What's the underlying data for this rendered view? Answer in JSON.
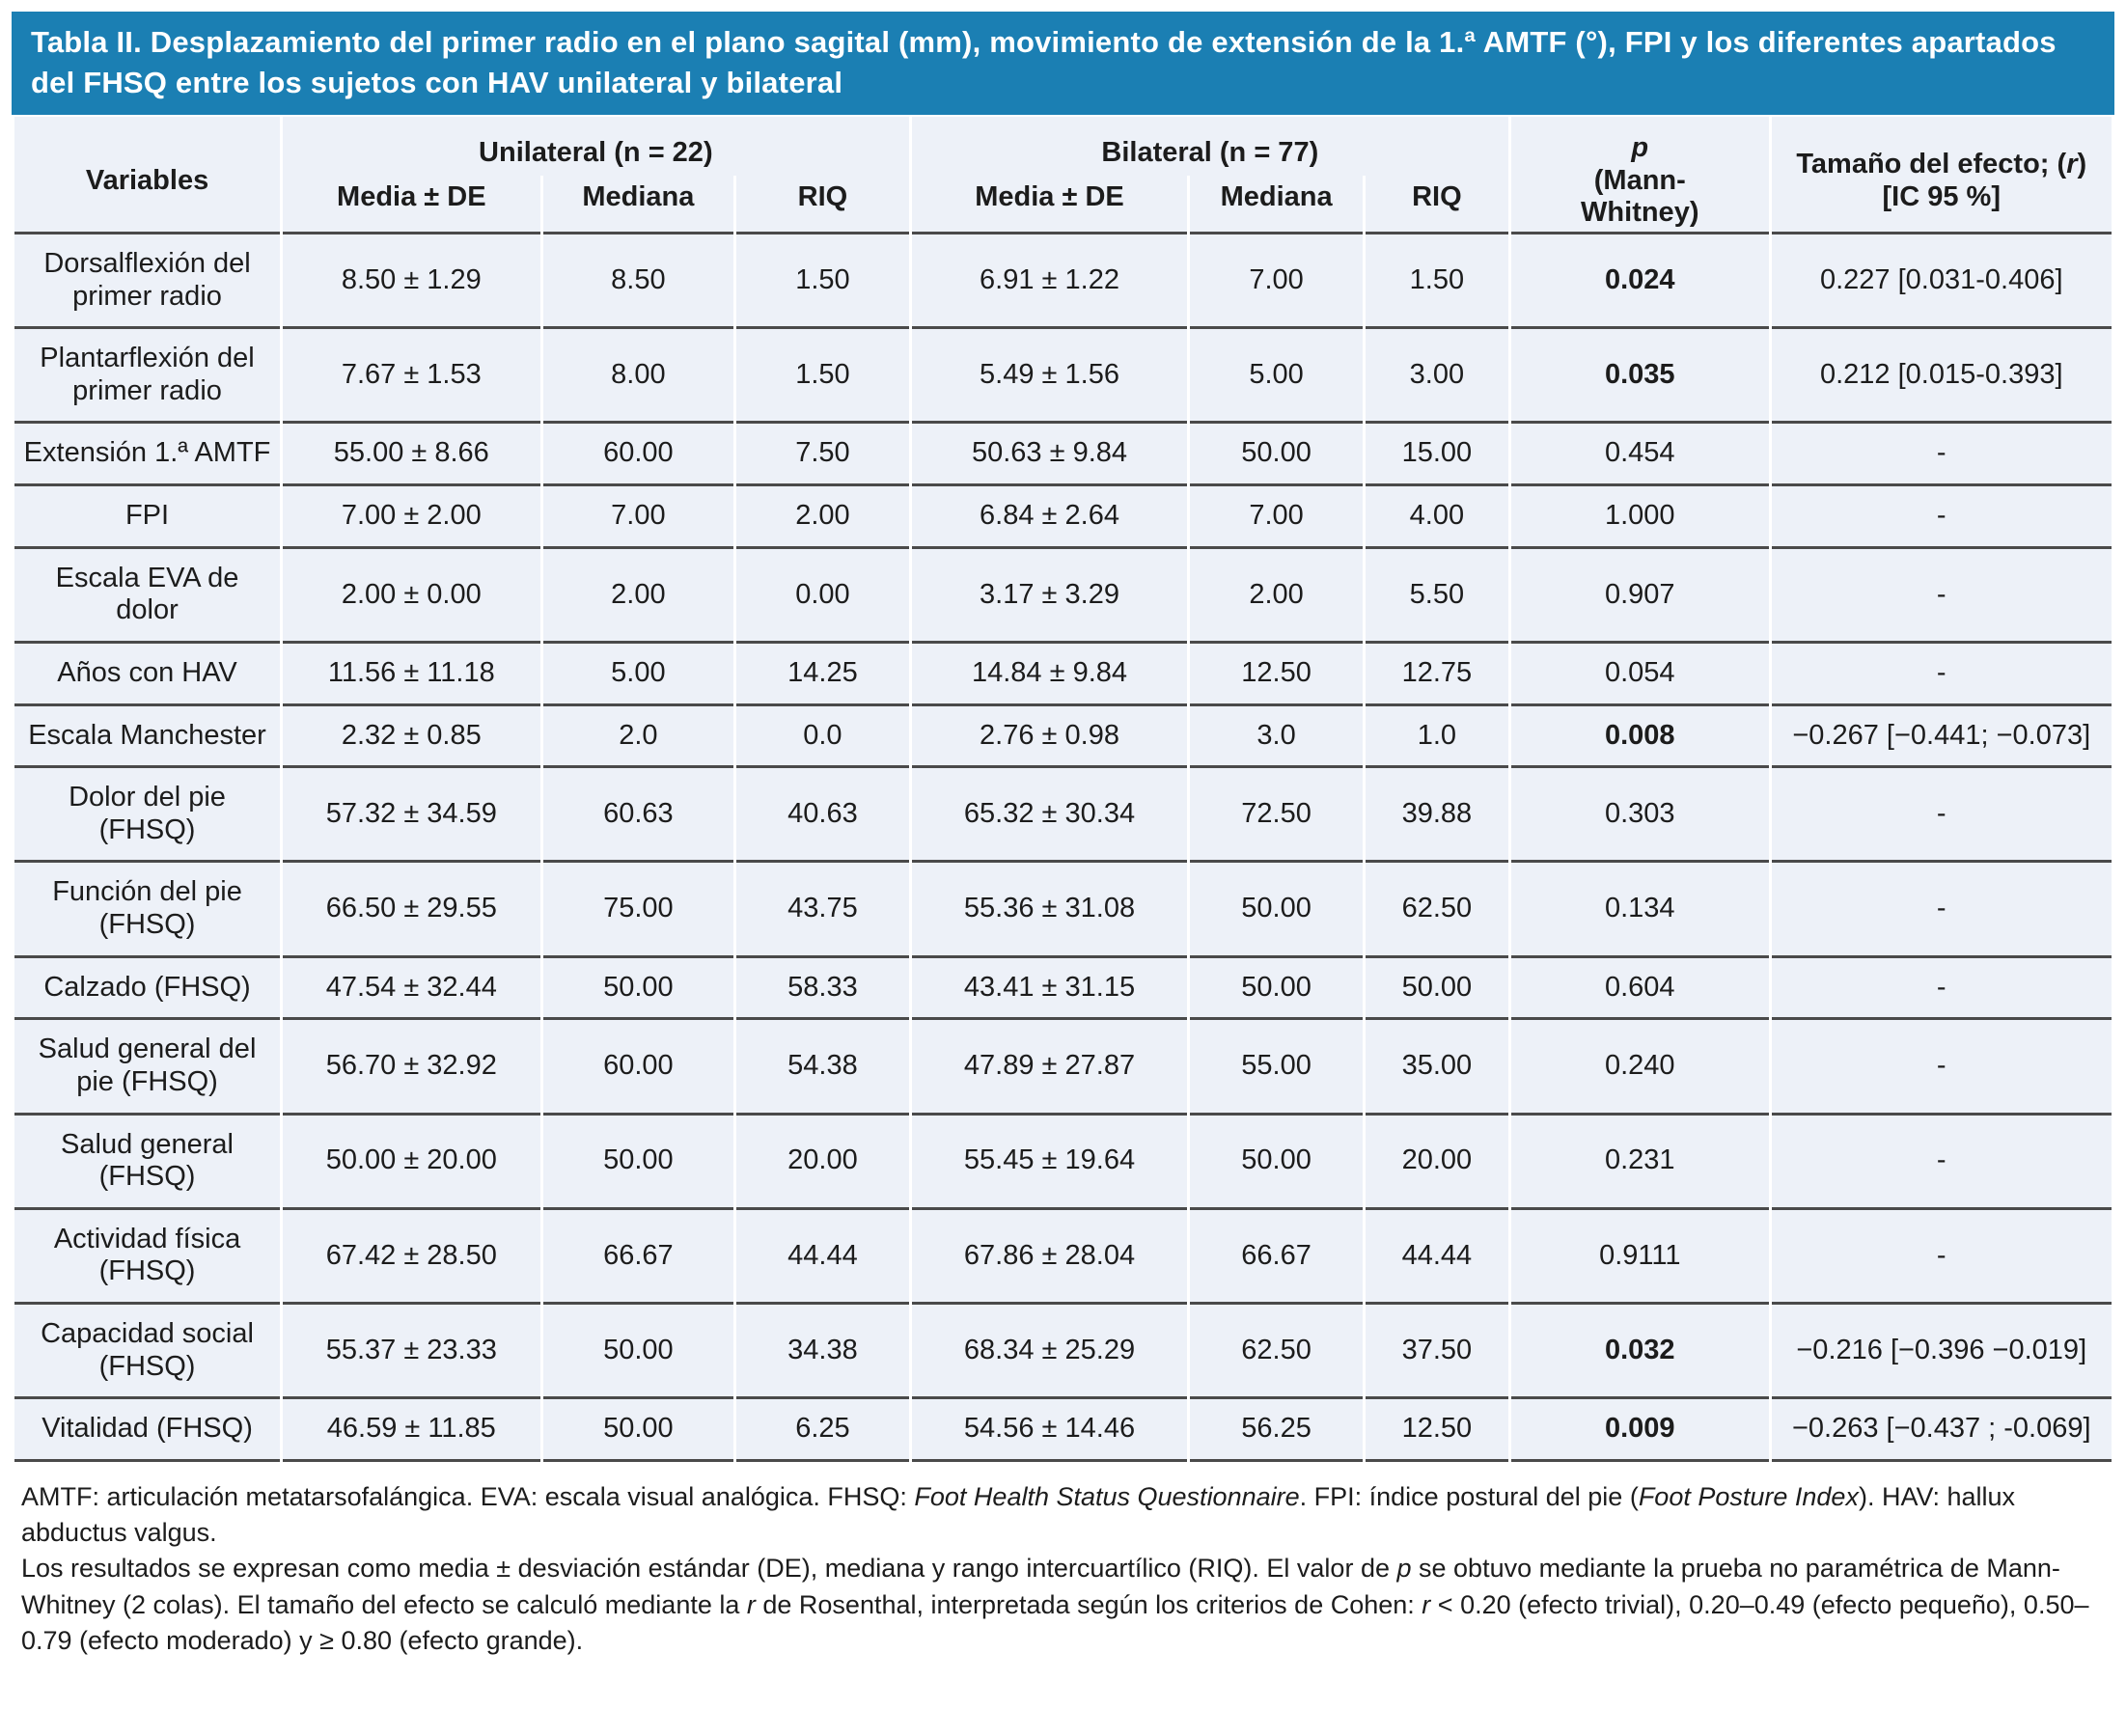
{
  "title": "Tabla II. Desplazamiento del primer radio en el plano sagital (mm), movimiento de extensión de la 1.ª AMTF (°), FPI y los diferentes apartados del FHSQ entre los sujetos con HAV unilateral y bilateral",
  "colors": {
    "title_bar": "#1b7fb3",
    "row_background": "#edf1f8",
    "rule": "#4a4a4a",
    "title_text": "#ffffff",
    "body_text": "#1c1c1c"
  },
  "table": {
    "header": {
      "variables": "Variables",
      "group_unilateral": "Unilateral (n = 22)",
      "group_bilateral": "Bilateral (n = 77)",
      "sub": [
        "Media ± DE",
        "Mediana",
        "RIQ",
        "Media ± DE",
        "Mediana",
        "RIQ"
      ],
      "p": {
        "lines": [
          [
            {
              "t": "p",
              "i": true
            }
          ],
          [
            {
              "t": "(Mann-"
            }
          ],
          [
            {
              "t": "Whitney)"
            }
          ]
        ]
      },
      "effect": {
        "lines": [
          [
            {
              "t": "Tamaño del efecto; ("
            },
            {
              "t": "r",
              "i": true
            },
            {
              "t": ")"
            }
          ],
          [
            {
              "t": "[IC 95 %]"
            }
          ]
        ]
      }
    },
    "rows": [
      {
        "label": "Dorsalflexión del primer radio",
        "u_media": "8.50 ± 1.29",
        "u_mediana": "8.50",
        "u_riq": "1.50",
        "b_media": "6.91 ± 1.22",
        "b_mediana": "7.00",
        "b_riq": "1.50",
        "p": "0.024",
        "p_bold": true,
        "effect": "0.227 [0.031-0.406]"
      },
      {
        "label": "Plantarflexión del primer radio",
        "u_media": "7.67 ± 1.53",
        "u_mediana": "8.00",
        "u_riq": "1.50",
        "b_media": "5.49 ± 1.56",
        "b_mediana": "5.00",
        "b_riq": "3.00",
        "p": "0.035",
        "p_bold": true,
        "effect": "0.212 [0.015-0.393]"
      },
      {
        "label": "Extensión 1.ª AMTF",
        "u_media": "55.00 ± 8.66",
        "u_mediana": "60.00",
        "u_riq": "7.50",
        "b_media": "50.63 ± 9.84",
        "b_mediana": "50.00",
        "b_riq": "15.00",
        "p": "0.454",
        "p_bold": false,
        "effect": "-"
      },
      {
        "label": "FPI",
        "u_media": "7.00 ± 2.00",
        "u_mediana": "7.00",
        "u_riq": "2.00",
        "b_media": "6.84 ± 2.64",
        "b_mediana": "7.00",
        "b_riq": "4.00",
        "p": "1.000",
        "p_bold": false,
        "effect": "-"
      },
      {
        "label": "Escala EVA de dolor",
        "u_media": "2.00 ± 0.00",
        "u_mediana": "2.00",
        "u_riq": "0.00",
        "b_media": "3.17 ± 3.29",
        "b_mediana": "2.00",
        "b_riq": "5.50",
        "p": "0.907",
        "p_bold": false,
        "effect": "-"
      },
      {
        "label": "Años con HAV",
        "u_media": "11.56 ± 11.18",
        "u_mediana": "5.00",
        "u_riq": "14.25",
        "b_media": "14.84 ± 9.84",
        "b_mediana": "12.50",
        "b_riq": "12.75",
        "p": "0.054",
        "p_bold": false,
        "effect": "-"
      },
      {
        "label": "Escala Manchester",
        "u_media": "2.32 ± 0.85",
        "u_mediana": "2.0",
        "u_riq": "0.0",
        "b_media": "2.76 ± 0.98",
        "b_mediana": "3.0",
        "b_riq": "1.0",
        "p": "0.008",
        "p_bold": true,
        "effect": "−0.267 [−0.441; −0.073]"
      },
      {
        "label": "Dolor del pie (FHSQ)",
        "u_media": "57.32 ± 34.59",
        "u_mediana": "60.63",
        "u_riq": "40.63",
        "b_media": "65.32 ± 30.34",
        "b_mediana": "72.50",
        "b_riq": "39.88",
        "p": "0.303",
        "p_bold": false,
        "effect": "-"
      },
      {
        "label": "Función del pie (FHSQ)",
        "u_media": "66.50 ± 29.55",
        "u_mediana": "75.00",
        "u_riq": "43.75",
        "b_media": "55.36 ± 31.08",
        "b_mediana": "50.00",
        "b_riq": "62.50",
        "p": "0.134",
        "p_bold": false,
        "effect": "-"
      },
      {
        "label": "Calzado (FHSQ)",
        "u_media": "47.54 ± 32.44",
        "u_mediana": "50.00",
        "u_riq": "58.33",
        "b_media": "43.41 ± 31.15",
        "b_mediana": "50.00",
        "b_riq": "50.00",
        "p": "0.604",
        "p_bold": false,
        "effect": "-"
      },
      {
        "label": "Salud general del pie (FHSQ)",
        "u_media": "56.70 ± 32.92",
        "u_mediana": "60.00",
        "u_riq": "54.38",
        "b_media": "47.89 ± 27.87",
        "b_mediana": "55.00",
        "b_riq": "35.00",
        "p": "0.240",
        "p_bold": false,
        "effect": "-"
      },
      {
        "label": "Salud general (FHSQ)",
        "u_media": "50.00 ± 20.00",
        "u_mediana": "50.00",
        "u_riq": "20.00",
        "b_media": "55.45 ± 19.64",
        "b_mediana": "50.00",
        "b_riq": "20.00",
        "p": "0.231",
        "p_bold": false,
        "effect": "-"
      },
      {
        "label": "Actividad física (FHSQ)",
        "u_media": "67.42 ± 28.50",
        "u_mediana": "66.67",
        "u_riq": "44.44",
        "b_media": "67.86 ± 28.04",
        "b_mediana": "66.67",
        "b_riq": "44.44",
        "p": "0.9111",
        "p_bold": false,
        "effect": "-"
      },
      {
        "label": "Capacidad social (FHSQ)",
        "u_media": "55.37 ± 23.33",
        "u_mediana": "50.00",
        "u_riq": "34.38",
        "b_media": "68.34 ± 25.29",
        "b_mediana": "62.50",
        "b_riq": "37.50",
        "p": "0.032",
        "p_bold": true,
        "effect": "−0.216 [−0.396 −0.019]"
      },
      {
        "label": "Vitalidad (FHSQ)",
        "u_media": "46.59 ± 11.85",
        "u_mediana": "50.00",
        "u_riq": "6.25",
        "b_media": "54.56 ± 14.46",
        "b_mediana": "56.25",
        "b_riq": "12.50",
        "p": "0.009",
        "p_bold": true,
        "effect": "−0.263 [−0.437 ; -0.069]"
      }
    ]
  },
  "footnotes": [
    [
      {
        "t": "AMTF: articulación metatarsofalángica. EVA: escala visual analógica. FHSQ: "
      },
      {
        "t": "Foot Health Status Questionnaire",
        "i": true
      },
      {
        "t": ". FPI: índice postural del pie ("
      },
      {
        "t": "Foot Posture Index",
        "i": true
      },
      {
        "t": "). HAV: hallux abductus valgus."
      }
    ],
    [
      {
        "t": "Los resultados se expresan como media ± desviación estándar (DE), mediana y rango intercuartílico (RIQ). El valor de "
      },
      {
        "t": "p",
        "i": true
      },
      {
        "t": " se obtuvo mediante la prueba no paramétrica de Mann-Whitney (2 colas). El tamaño del efecto se calculó mediante la "
      },
      {
        "t": "r",
        "i": true
      },
      {
        "t": " de Rosenthal, interpretada según los criterios de Cohen: "
      },
      {
        "t": "r",
        "i": true
      },
      {
        "t": " < 0.20 (efecto trivial), 0.20–0.49 (efecto pequeño), 0.50–0.79 (efecto moderado) y ≥ 0.80 (efecto grande)."
      }
    ]
  ]
}
